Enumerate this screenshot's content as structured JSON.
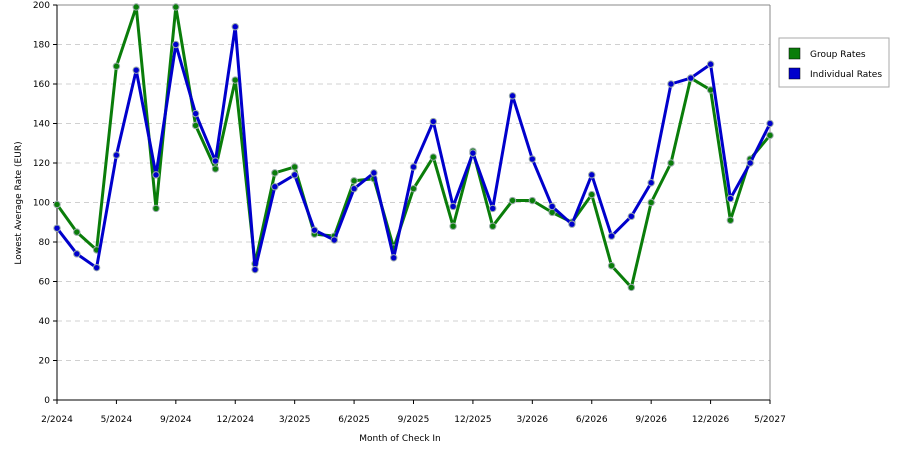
{
  "chart_data": {
    "type": "line",
    "x_label": "Month of Check In",
    "y_label": "Lowest Average Rate (EUR)",
    "categories": [
      "2/2024",
      null,
      null,
      "5/2024",
      null,
      null,
      "9/2024",
      null,
      null,
      "12/2024",
      null,
      null,
      "3/2025",
      null,
      null,
      "6/2025",
      null,
      null,
      "9/2025",
      null,
      null,
      "12/2025",
      null,
      null,
      "3/2026",
      null,
      null,
      "6/2026",
      null,
      null,
      "9/2026",
      null,
      null,
      "12/2026",
      null,
      null,
      "5/2027"
    ],
    "series": [
      {
        "name": "Group Rates",
        "color": "#0a7d0a",
        "values": [
          99,
          85,
          76,
          169,
          199,
          97,
          199,
          139,
          117,
          162,
          69,
          115,
          118,
          84,
          83,
          111,
          112,
          77,
          107,
          123,
          88,
          126,
          88,
          101,
          101,
          95,
          90,
          104,
          68,
          57,
          100,
          120,
          163,
          157,
          91,
          122,
          134
        ]
      },
      {
        "name": "Individual Rates",
        "color": "#0000cc",
        "values": [
          87,
          74,
          67,
          124,
          167,
          114,
          180,
          145,
          121,
          189,
          66,
          108,
          114,
          86,
          81,
          107,
          115,
          72,
          118,
          141,
          98,
          125,
          97,
          154,
          122,
          98,
          89,
          114,
          83,
          93,
          110,
          160,
          163,
          170,
          102,
          120,
          140
        ]
      }
    ],
    "ylim": [
      0,
      200
    ],
    "yticks": [
      0,
      20,
      40,
      60,
      80,
      100,
      120,
      140,
      160,
      180,
      200
    ],
    "grid": true,
    "legend": "right"
  }
}
